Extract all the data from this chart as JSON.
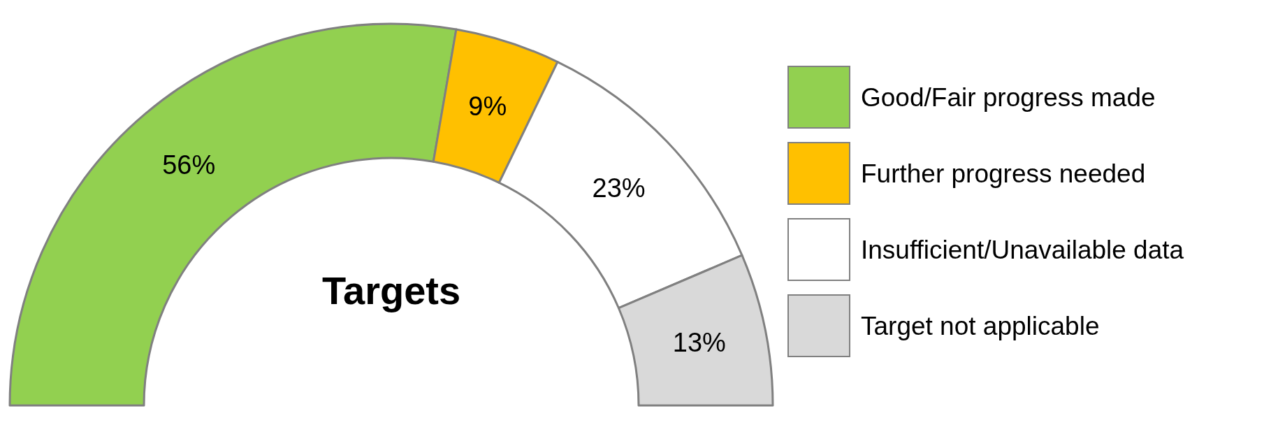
{
  "chart_data": {
    "type": "donut",
    "title": "Targets",
    "categories": [
      "Good/Fair progress made",
      "Further progress needed",
      "Insufficient/Unavailable data",
      "Target not applicable"
    ],
    "values": [
      56,
      9,
      23,
      13
    ],
    "colors": [
      "#92d050",
      "#ffc000",
      "#ffffff",
      "#d9d9d9"
    ],
    "value_labels": [
      "56%",
      "9%",
      "23%",
      "13%"
    ],
    "legend": "right"
  }
}
